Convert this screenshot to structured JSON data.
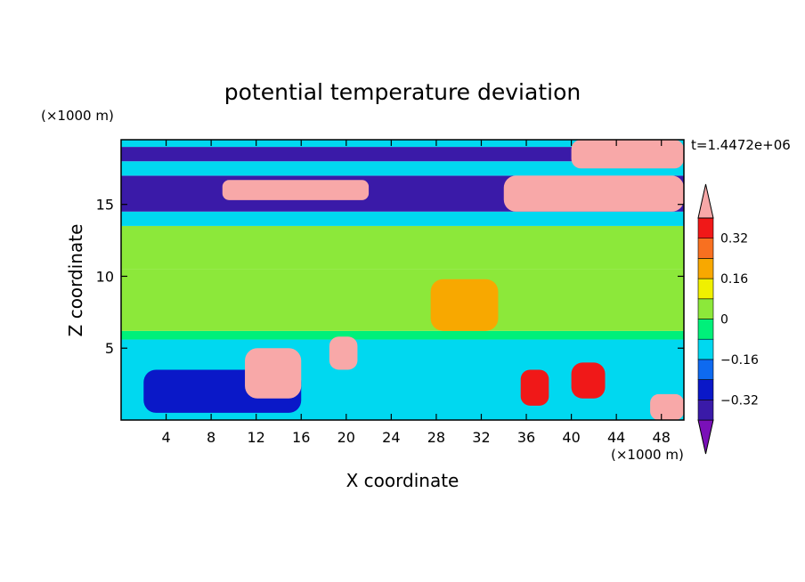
{
  "chart_data": {
    "type": "heatmap",
    "title": "potential temperature deviation",
    "xlabel": "X coordinate",
    "ylabel": "Z coordinate",
    "x_unit": "(×1000 m)",
    "y_unit": "(×1000 m)",
    "time_label": "t=1.4472e+06",
    "xlim": [
      0,
      50
    ],
    "ylim": [
      0,
      19.5
    ],
    "x_ticks": [
      4,
      8,
      12,
      16,
      20,
      24,
      28,
      32,
      36,
      40,
      44,
      48
    ],
    "y_ticks": [
      5,
      10,
      15
    ],
    "x_tick_labels": [
      "4",
      "8",
      "12",
      "16",
      "20",
      "24",
      "28",
      "32",
      "36",
      "40",
      "44",
      "48"
    ],
    "y_tick_labels": [
      "5",
      "10",
      "15"
    ],
    "colorbar": {
      "levels": [
        -0.4,
        -0.32,
        -0.24,
        -0.16,
        -0.08,
        0,
        0.08,
        0.16,
        0.24,
        0.32,
        0.4
      ],
      "tick_labels": [
        "0.32",
        "0.16",
        "0",
        "−0.16",
        "−0.32"
      ],
      "tick_values": [
        0.32,
        0.16,
        0,
        -0.16,
        -0.32
      ],
      "colors_bottom_to_top": [
        "#7a10b8",
        "#3a1aa8",
        "#0a18c8",
        "#0e6af0",
        "#00d8f0",
        "#00f07a",
        "#8ce83a",
        "#f0f000",
        "#f8a800",
        "#f87020",
        "#f01818",
        "#f8a8a8"
      ],
      "extend": "both"
    },
    "regions": [
      {
        "x": [
          0,
          50
        ],
        "z": [
          0,
          5.6
        ],
        "value": -0.1
      },
      {
        "x": [
          0,
          50
        ],
        "z": [
          5.6,
          6.2
        ],
        "value": -0.05
      },
      {
        "x": [
          0,
          50
        ],
        "z": [
          6.2,
          10.5
        ],
        "value": 0.03
      },
      {
        "x": [
          0,
          50
        ],
        "z": [
          10.5,
          13.5
        ],
        "value": 0.03
      },
      {
        "x": [
          0,
          50
        ],
        "z": [
          13.5,
          14.5
        ],
        "value": -0.12
      },
      {
        "x": [
          0,
          50
        ],
        "z": [
          14.5,
          17.0
        ],
        "value": -0.36
      },
      {
        "x": [
          0,
          50
        ],
        "z": [
          17.0,
          18.0
        ],
        "value": -0.12
      },
      {
        "x": [
          0,
          50
        ],
        "z": [
          18.0,
          19.0
        ],
        "value": -0.38
      },
      {
        "x": [
          0,
          50
        ],
        "z": [
          19.0,
          19.5
        ],
        "value": -0.14
      },
      {
        "x": [
          27.5,
          33.5
        ],
        "z": [
          6.2,
          9.8
        ],
        "value": 0.18
      },
      {
        "x": [
          2,
          16
        ],
        "z": [
          0.5,
          3.5
        ],
        "value": -0.3
      },
      {
        "x": [
          11,
          16
        ],
        "z": [
          1.5,
          5.0
        ],
        "value": 0.42
      },
      {
        "x": [
          18.5,
          21
        ],
        "z": [
          3.5,
          5.8
        ],
        "value": 0.42
      },
      {
        "x": [
          35.5,
          38
        ],
        "z": [
          1.0,
          3.5
        ],
        "value": 0.34
      },
      {
        "x": [
          40,
          43
        ],
        "z": [
          1.5,
          4.0
        ],
        "value": 0.34
      },
      {
        "x": [
          47,
          50
        ],
        "z": [
          0,
          1.8
        ],
        "value": 0.42
      },
      {
        "x": [
          9,
          22
        ],
        "z": [
          15.3,
          16.7
        ],
        "value": 0.42
      },
      {
        "x": [
          34,
          50
        ],
        "z": [
          14.5,
          17.0
        ],
        "value": 0.42
      },
      {
        "x": [
          40,
          50
        ],
        "z": [
          17.5,
          19.5
        ],
        "value": 0.42
      }
    ]
  }
}
